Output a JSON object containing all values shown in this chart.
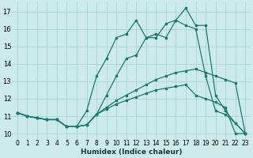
{
  "xlabel": "Humidex (Indice chaleur)",
  "background_color": "#cceaea",
  "grid_color": "#aad4d4",
  "line_color": "#1a7a6e",
  "xlim": [
    -0.5,
    23.5
  ],
  "ylim": [
    9.7,
    17.5
  ],
  "yticks": [
    10,
    11,
    12,
    13,
    14,
    15,
    16,
    17
  ],
  "xticks": [
    0,
    1,
    2,
    3,
    4,
    5,
    6,
    7,
    8,
    9,
    10,
    11,
    12,
    13,
    14,
    15,
    16,
    17,
    18,
    19,
    20,
    21,
    22,
    23
  ],
  "series": [
    [
      11.2,
      11.0,
      10.9,
      10.8,
      10.8,
      10.4,
      10.4,
      10.5,
      11.1,
      11.5,
      11.9,
      12.2,
      12.5,
      12.8,
      13.1,
      13.3,
      13.5,
      13.6,
      13.7,
      13.5,
      13.3,
      13.1,
      12.9,
      10.0
    ],
    [
      11.2,
      11.0,
      10.9,
      10.8,
      10.8,
      10.4,
      10.4,
      10.5,
      11.1,
      11.4,
      11.7,
      11.9,
      12.1,
      12.3,
      12.5,
      12.6,
      12.7,
      12.8,
      12.2,
      12.0,
      11.8,
      11.5,
      10.0,
      10.0
    ],
    [
      11.2,
      11.0,
      10.9,
      10.8,
      10.8,
      10.4,
      10.4,
      10.5,
      11.1,
      12.2,
      13.3,
      14.3,
      14.5,
      15.5,
      15.7,
      15.5,
      16.5,
      16.2,
      16.0,
      13.3,
      11.3,
      11.1,
      10.6,
      10.0
    ],
    [
      11.2,
      11.0,
      10.9,
      10.8,
      10.8,
      10.4,
      10.4,
      11.3,
      13.3,
      14.3,
      15.5,
      15.7,
      16.5,
      15.5,
      15.5,
      16.3,
      16.5,
      17.2,
      16.2,
      16.2,
      12.2,
      11.3,
      10.6,
      10.0
    ]
  ]
}
